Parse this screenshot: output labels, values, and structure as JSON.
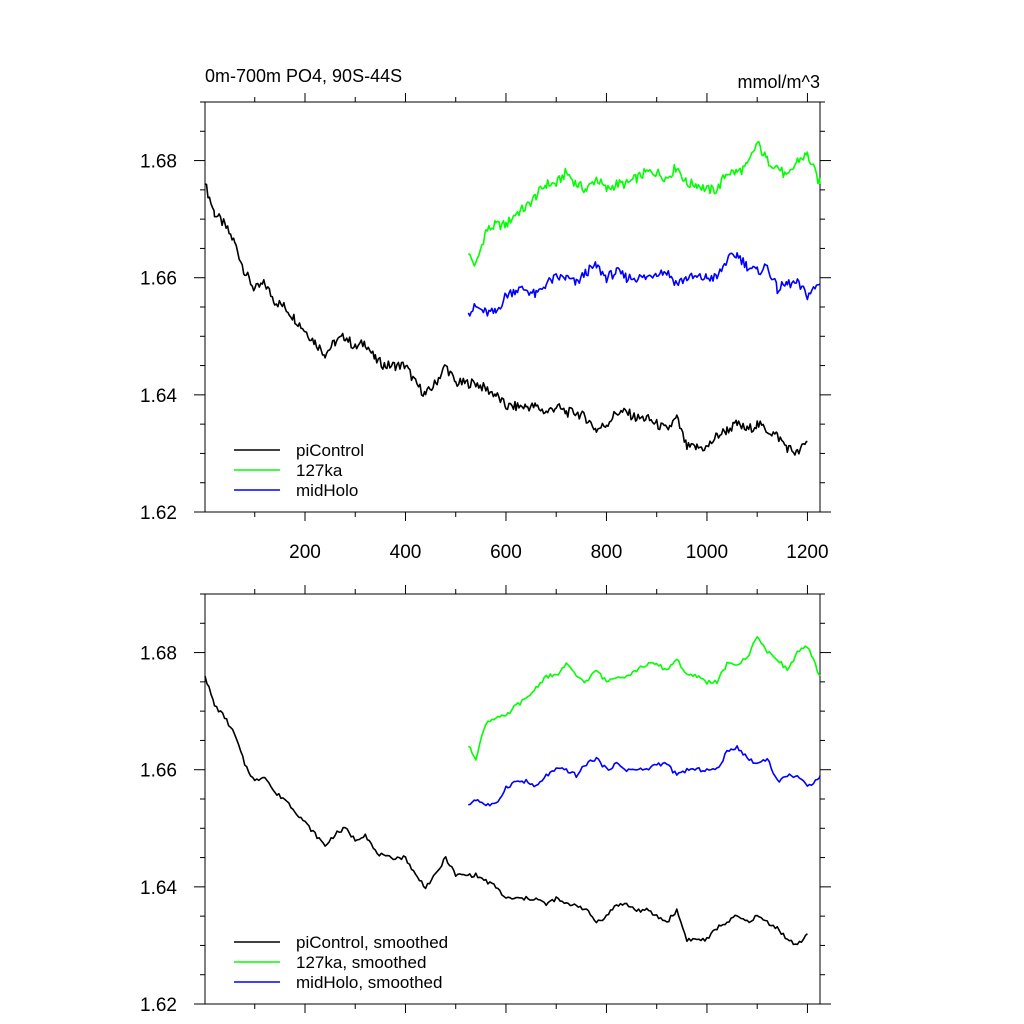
{
  "chart_data": [
    {
      "type": "line",
      "title_left": "0m-700m PO4, 90S-44S",
      "title_right": "mmol/m^3",
      "xlim": [
        1,
        1225
      ],
      "ylim": [
        1.62,
        1.69
      ],
      "x_ticks": [
        200,
        400,
        600,
        800,
        1000,
        1200
      ],
      "x_tick_labels": [
        "200",
        "400",
        "600",
        "800",
        "1000",
        "1200"
      ],
      "y_ticks": [
        1.62,
        1.64,
        1.66,
        1.68
      ],
      "y_tick_labels": [
        "1.62",
        "1.64",
        "1.66",
        "1.68"
      ],
      "legend": "bottom-left",
      "series": [
        {
          "name": "piControl",
          "color": "#000000",
          "x": [
            1,
            20,
            40,
            60,
            80,
            100,
            120,
            140,
            160,
            180,
            200,
            220,
            240,
            260,
            280,
            300,
            320,
            340,
            360,
            380,
            400,
            420,
            440,
            460,
            480,
            500,
            520,
            540,
            560,
            580,
            600,
            620,
            640,
            660,
            680,
            700,
            720,
            740,
            760,
            780,
            800,
            820,
            840,
            860,
            880,
            900,
            920,
            940,
            960,
            980,
            1000,
            1020,
            1040,
            1060,
            1080,
            1100,
            1120,
            1140,
            1160,
            1180,
            1200
          ],
          "y": [
            1.676,
            1.671,
            1.669,
            1.666,
            1.661,
            1.658,
            1.659,
            1.656,
            1.655,
            1.653,
            1.651,
            1.649,
            1.647,
            1.649,
            1.65,
            1.648,
            1.649,
            1.646,
            1.645,
            1.645,
            1.645,
            1.642,
            1.64,
            1.642,
            1.645,
            1.642,
            1.642,
            1.642,
            1.641,
            1.64,
            1.638,
            1.638,
            1.638,
            1.638,
            1.637,
            1.638,
            1.637,
            1.637,
            1.636,
            1.634,
            1.635,
            1.637,
            1.637,
            1.636,
            1.636,
            1.635,
            1.634,
            1.636,
            1.631,
            1.631,
            1.631,
            1.633,
            1.634,
            1.635,
            1.634,
            1.635,
            1.634,
            1.633,
            1.631,
            1.63,
            1.632
          ]
        },
        {
          "name": "127ka",
          "color": "#00ff00",
          "x": [
            525,
            540,
            560,
            580,
            600,
            620,
            640,
            660,
            680,
            700,
            720,
            740,
            760,
            780,
            800,
            820,
            840,
            860,
            880,
            900,
            920,
            940,
            960,
            980,
            1000,
            1020,
            1040,
            1060,
            1080,
            1100,
            1120,
            1140,
            1160,
            1180,
            1200,
            1225
          ],
          "y": [
            1.664,
            1.662,
            1.668,
            1.669,
            1.669,
            1.671,
            1.672,
            1.674,
            1.676,
            1.676,
            1.678,
            1.676,
            1.675,
            1.677,
            1.675,
            1.676,
            1.676,
            1.677,
            1.678,
            1.678,
            1.677,
            1.679,
            1.676,
            1.676,
            1.675,
            1.675,
            1.678,
            1.678,
            1.679,
            1.683,
            1.68,
            1.679,
            1.677,
            1.68,
            1.681,
            1.676
          ]
        },
        {
          "name": "midHolo",
          "color": "#0000ff",
          "x": [
            525,
            540,
            560,
            580,
            600,
            620,
            640,
            660,
            680,
            700,
            720,
            740,
            760,
            780,
            800,
            820,
            840,
            860,
            880,
            900,
            920,
            940,
            960,
            980,
            1000,
            1020,
            1040,
            1060,
            1080,
            1100,
            1120,
            1140,
            1160,
            1180,
            1200,
            1225
          ],
          "y": [
            1.654,
            1.655,
            1.654,
            1.654,
            1.657,
            1.658,
            1.658,
            1.657,
            1.659,
            1.66,
            1.66,
            1.659,
            1.661,
            1.662,
            1.66,
            1.661,
            1.66,
            1.66,
            1.66,
            1.661,
            1.661,
            1.659,
            1.66,
            1.66,
            1.66,
            1.66,
            1.663,
            1.664,
            1.662,
            1.661,
            1.662,
            1.658,
            1.659,
            1.659,
            1.657,
            1.659
          ]
        }
      ]
    },
    {
      "type": "line",
      "xlim": [
        1,
        1225
      ],
      "ylim": [
        1.62,
        1.69
      ],
      "x_ticks": [
        200,
        400,
        600,
        800,
        1000,
        1200
      ],
      "y_ticks": [
        1.62,
        1.64,
        1.66,
        1.68
      ],
      "y_tick_labels": [
        "1.62",
        "1.64",
        "1.66",
        "1.68"
      ],
      "legend": "bottom-left",
      "series": [
        {
          "name": "piControl, smoothed",
          "color": "#000000",
          "x": [
            1,
            20,
            40,
            60,
            80,
            100,
            120,
            140,
            160,
            180,
            200,
            220,
            240,
            260,
            280,
            300,
            320,
            340,
            360,
            380,
            400,
            420,
            440,
            460,
            480,
            500,
            520,
            540,
            560,
            580,
            600,
            620,
            640,
            660,
            680,
            700,
            720,
            740,
            760,
            780,
            800,
            820,
            840,
            860,
            880,
            900,
            920,
            940,
            960,
            980,
            1000,
            1020,
            1040,
            1060,
            1080,
            1100,
            1120,
            1140,
            1160,
            1180,
            1200
          ],
          "y": [
            1.676,
            1.671,
            1.669,
            1.666,
            1.661,
            1.658,
            1.659,
            1.656,
            1.655,
            1.653,
            1.651,
            1.649,
            1.647,
            1.649,
            1.65,
            1.648,
            1.649,
            1.646,
            1.645,
            1.645,
            1.645,
            1.642,
            1.64,
            1.642,
            1.645,
            1.642,
            1.642,
            1.642,
            1.641,
            1.64,
            1.638,
            1.638,
            1.638,
            1.638,
            1.637,
            1.638,
            1.637,
            1.637,
            1.636,
            1.634,
            1.635,
            1.637,
            1.637,
            1.636,
            1.636,
            1.635,
            1.634,
            1.636,
            1.631,
            1.631,
            1.631,
            1.633,
            1.634,
            1.635,
            1.634,
            1.635,
            1.634,
            1.633,
            1.631,
            1.63,
            1.632
          ]
        },
        {
          "name": "127ka, smoothed",
          "color": "#00ff00",
          "x": [
            525,
            540,
            560,
            580,
            600,
            620,
            640,
            660,
            680,
            700,
            720,
            740,
            760,
            780,
            800,
            820,
            840,
            860,
            880,
            900,
            920,
            940,
            960,
            980,
            1000,
            1020,
            1040,
            1060,
            1080,
            1100,
            1120,
            1140,
            1160,
            1180,
            1200,
            1225
          ],
          "y": [
            1.664,
            1.662,
            1.668,
            1.669,
            1.669,
            1.671,
            1.672,
            1.674,
            1.676,
            1.676,
            1.678,
            1.676,
            1.675,
            1.677,
            1.675,
            1.676,
            1.676,
            1.677,
            1.678,
            1.678,
            1.677,
            1.679,
            1.676,
            1.676,
            1.675,
            1.675,
            1.678,
            1.678,
            1.679,
            1.683,
            1.68,
            1.679,
            1.677,
            1.68,
            1.681,
            1.676
          ]
        },
        {
          "name": "midHolo, smoothed",
          "color": "#0000ff",
          "x": [
            525,
            540,
            560,
            580,
            600,
            620,
            640,
            660,
            680,
            700,
            720,
            740,
            760,
            780,
            800,
            820,
            840,
            860,
            880,
            900,
            920,
            940,
            960,
            980,
            1000,
            1020,
            1040,
            1060,
            1080,
            1100,
            1120,
            1140,
            1160,
            1180,
            1200,
            1225
          ],
          "y": [
            1.654,
            1.655,
            1.654,
            1.654,
            1.657,
            1.658,
            1.658,
            1.657,
            1.659,
            1.66,
            1.66,
            1.659,
            1.661,
            1.662,
            1.66,
            1.661,
            1.66,
            1.66,
            1.66,
            1.661,
            1.661,
            1.659,
            1.66,
            1.66,
            1.66,
            1.66,
            1.663,
            1.664,
            1.662,
            1.661,
            1.662,
            1.658,
            1.659,
            1.659,
            1.657,
            1.659
          ]
        }
      ]
    }
  ]
}
